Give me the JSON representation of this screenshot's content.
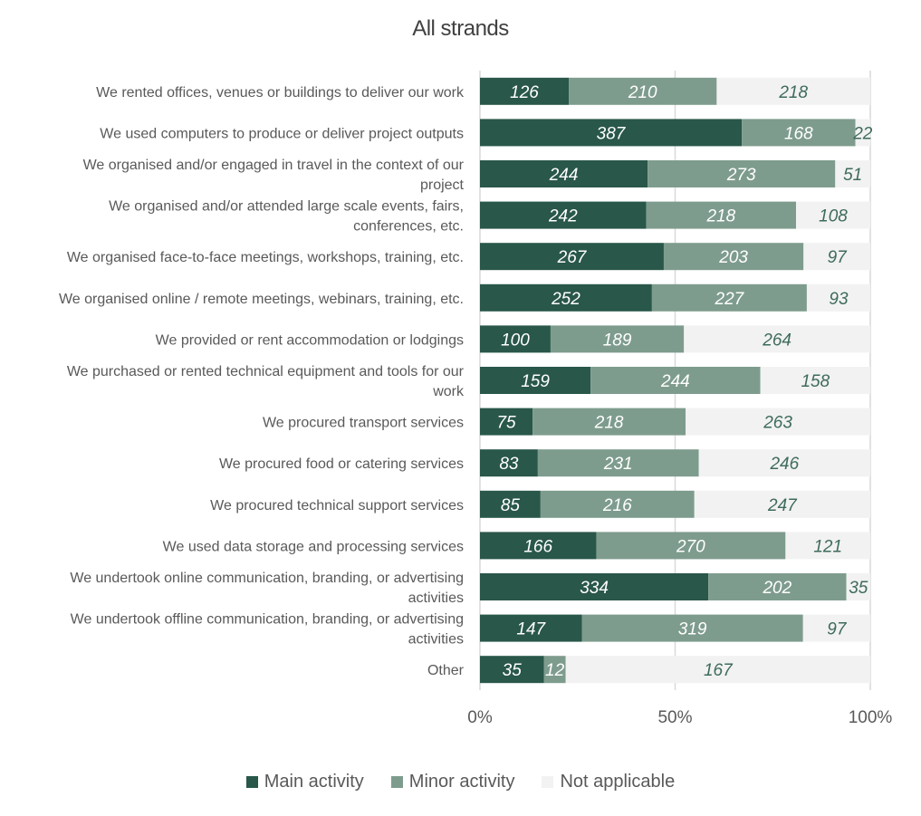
{
  "chart_data": {
    "type": "bar",
    "orientation": "horizontal",
    "stacked": "percent",
    "title": "All strands",
    "categories": [
      [
        "We rented offices, venues or buildings to deliver our work"
      ],
      [
        "We used computers to produce or deliver project outputs"
      ],
      [
        "We organised and/or engaged in travel in the context of our",
        "project"
      ],
      [
        "We organised and/or attended large scale events, fairs,",
        "conferences, etc."
      ],
      [
        "We organised face-to-face meetings, workshops, training, etc."
      ],
      [
        "We organised online / remote meetings, webinars, training, etc."
      ],
      [
        "We provided or rent accommodation or lodgings"
      ],
      [
        "We purchased or rented technical equipment and tools for our",
        "work"
      ],
      [
        "We procured transport services"
      ],
      [
        "We procured food or catering services"
      ],
      [
        "We procured technical support services"
      ],
      [
        "We used data storage and processing services"
      ],
      [
        "We undertook online communication, branding, or advertising",
        "activities"
      ],
      [
        "We undertook offline communication, branding, or advertising",
        "activities"
      ],
      [
        "Other"
      ]
    ],
    "series": [
      {
        "name": "Main activity",
        "color": "#29574a",
        "label_color": "#ffffff",
        "values": [
          126,
          387,
          244,
          242,
          267,
          252,
          100,
          159,
          75,
          83,
          85,
          166,
          334,
          147,
          35
        ]
      },
      {
        "name": "Minor activity",
        "color": "#7e9c8e",
        "label_color": "#ffffff",
        "values": [
          210,
          168,
          273,
          218,
          203,
          227,
          189,
          244,
          218,
          231,
          216,
          270,
          202,
          319,
          12
        ]
      },
      {
        "name": "Not applicable",
        "color": "#f2f2f2",
        "label_color": "#3e6b5c",
        "values": [
          218,
          22,
          51,
          108,
          97,
          93,
          264,
          158,
          263,
          246,
          247,
          121,
          35,
          97,
          167
        ]
      }
    ],
    "xticks": [
      "0%",
      "50%",
      "100%"
    ],
    "xlim": [
      0,
      100
    ],
    "grid": true,
    "legend": "bottom"
  }
}
